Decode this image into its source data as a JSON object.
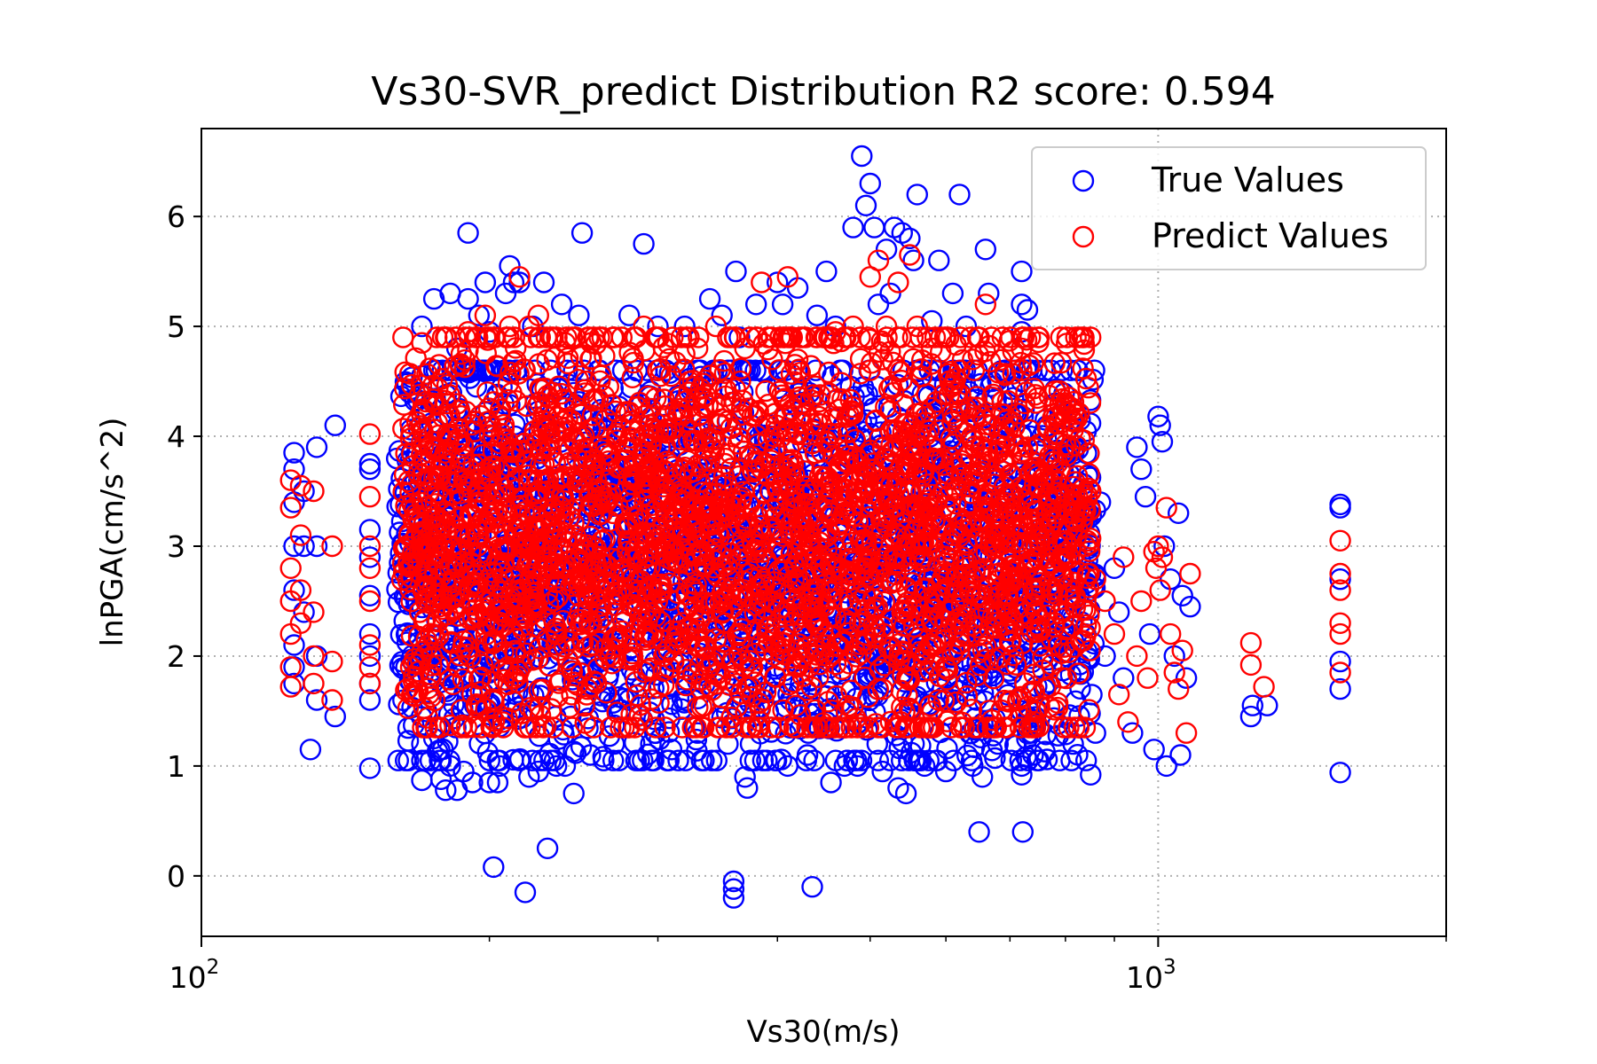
{
  "chart_data": {
    "type": "scatter",
    "title": "Vs30-SVR_predict Distribution R2 score: 0.594",
    "xlabel": "Vs30(m/s)",
    "ylabel": "lnPGA(cm/s^2)",
    "x_scale": "log",
    "xlim": [
      100,
      2000
    ],
    "ylim": [
      -0.55,
      6.8
    ],
    "x_ticks": [
      {
        "value": 100,
        "base": "10",
        "exp": "2"
      },
      {
        "value": 1000,
        "base": "10",
        "exp": "3"
      }
    ],
    "y_ticks": [
      0,
      1,
      2,
      3,
      4,
      5,
      6
    ],
    "y_tick_labels": [
      "0",
      "1",
      "2",
      "3",
      "4",
      "5",
      "6"
    ],
    "grid": true,
    "legend_position": "upper right",
    "series": [
      {
        "name": "True Values",
        "color": "#0000ff",
        "marker": "open-circle",
        "points": [
          [
            125,
            3.85
          ],
          [
            125,
            3.7
          ],
          [
            125,
            3.4
          ],
          [
            125,
            3.0
          ],
          [
            125,
            2.6
          ],
          [
            125,
            2.1
          ],
          [
            125,
            1.9
          ],
          [
            125,
            1.75
          ],
          [
            128,
            3.5
          ],
          [
            128,
            3.0
          ],
          [
            128,
            2.4
          ],
          [
            130,
            1.15
          ],
          [
            132,
            3.9
          ],
          [
            132,
            3.0
          ],
          [
            132,
            2.0
          ],
          [
            132,
            1.6
          ],
          [
            138,
            4.1
          ],
          [
            138,
            1.45
          ],
          [
            150,
            3.75
          ],
          [
            150,
            3.7
          ],
          [
            150,
            3.15
          ],
          [
            150,
            2.9
          ],
          [
            150,
            2.55
          ],
          [
            150,
            2.2
          ],
          [
            150,
            2.0
          ],
          [
            150,
            1.75
          ],
          [
            150,
            1.6
          ],
          [
            150,
            0.98
          ],
          [
            165,
            4.4
          ],
          [
            168,
            2.8
          ],
          [
            170,
            5.0
          ],
          [
            170,
            4.55
          ],
          [
            170,
            4.2
          ],
          [
            170,
            1.2
          ],
          [
            170,
            1.05
          ],
          [
            170,
            0.87
          ],
          [
            175,
            5.25
          ],
          [
            175,
            4.6
          ],
          [
            175,
            1.25
          ],
          [
            178,
            1.05
          ],
          [
            178,
            0.88
          ],
          [
            180,
            4.2
          ],
          [
            180,
            0.78
          ],
          [
            182,
            5.3
          ],
          [
            182,
            1.0
          ],
          [
            185,
            4.8
          ],
          [
            185,
            0.78
          ],
          [
            188,
            0.95
          ],
          [
            190,
            5.85
          ],
          [
            190,
            5.25
          ],
          [
            192,
            0.85
          ],
          [
            195,
            5.1
          ],
          [
            198,
            5.4
          ],
          [
            200,
            4.95
          ],
          [
            200,
            0.85
          ],
          [
            202,
            0.08
          ],
          [
            204,
            0.85
          ],
          [
            205,
            1.0
          ],
          [
            208,
            5.3
          ],
          [
            210,
            5.55
          ],
          [
            212,
            5.4
          ],
          [
            215,
            5.4
          ],
          [
            218,
            -0.15
          ],
          [
            220,
            0.9
          ],
          [
            222,
            5.0
          ],
          [
            225,
            0.95
          ],
          [
            228,
            5.4
          ],
          [
            230,
            0.25
          ],
          [
            235,
            1.0
          ],
          [
            238,
            5.2
          ],
          [
            240,
            1.0
          ],
          [
            245,
            0.75
          ],
          [
            248,
            5.1
          ],
          [
            250,
            5.85
          ],
          [
            255,
            1.1
          ],
          [
            260,
            4.6
          ],
          [
            270,
            1.2
          ],
          [
            280,
            5.1
          ],
          [
            290,
            5.75
          ],
          [
            295,
            1.2
          ],
          [
            300,
            5.0
          ],
          [
            310,
            1.15
          ],
          [
            320,
            5.0
          ],
          [
            330,
            1.3
          ],
          [
            340,
            5.25
          ],
          [
            350,
            5.1
          ],
          [
            355,
            1.2
          ],
          [
            360,
            -0.05
          ],
          [
            360,
            -0.12
          ],
          [
            360,
            -0.2
          ],
          [
            362,
            5.5
          ],
          [
            365,
            4.9
          ],
          [
            368,
            4.4
          ],
          [
            370,
            0.9
          ],
          [
            372,
            0.8
          ],
          [
            375,
            1.2
          ],
          [
            380,
            5.2
          ],
          [
            390,
            1.05
          ],
          [
            400,
            5.4
          ],
          [
            405,
            5.2
          ],
          [
            410,
            1.0
          ],
          [
            420,
            5.35
          ],
          [
            430,
            1.1
          ],
          [
            435,
            -0.1
          ],
          [
            440,
            5.1
          ],
          [
            450,
            5.5
          ],
          [
            455,
            0.85
          ],
          [
            460,
            5.0
          ],
          [
            470,
            1.0
          ],
          [
            480,
            5.9
          ],
          [
            485,
            1.0
          ],
          [
            490,
            6.55
          ],
          [
            495,
            6.1
          ],
          [
            500,
            6.3
          ],
          [
            505,
            5.9
          ],
          [
            510,
            5.2
          ],
          [
            515,
            0.95
          ],
          [
            520,
            5.7
          ],
          [
            525,
            5.3
          ],
          [
            530,
            5.9
          ],
          [
            535,
            0.8
          ],
          [
            540,
            5.85
          ],
          [
            545,
            0.75
          ],
          [
            550,
            5.8
          ],
          [
            555,
            5.6
          ],
          [
            560,
            6.2
          ],
          [
            570,
            1.0
          ],
          [
            580,
            5.05
          ],
          [
            590,
            5.6
          ],
          [
            600,
            0.95
          ],
          [
            610,
            5.3
          ],
          [
            620,
            6.2
          ],
          [
            630,
            5.0
          ],
          [
            640,
            1.0
          ],
          [
            650,
            0.4
          ],
          [
            655,
            0.9
          ],
          [
            660,
            5.7
          ],
          [
            665,
            5.3
          ],
          [
            670,
            4.5
          ],
          [
            680,
            1.2
          ],
          [
            700,
            4.2
          ],
          [
            720,
            5.5
          ],
          [
            720,
            5.2
          ],
          [
            720,
            4.95
          ],
          [
            720,
            4.5
          ],
          [
            720,
            4.0
          ],
          [
            720,
            3.5
          ],
          [
            720,
            3.0
          ],
          [
            720,
            2.5
          ],
          [
            720,
            2.0
          ],
          [
            720,
            1.5
          ],
          [
            720,
            1.0
          ],
          [
            720,
            0.92
          ],
          [
            722,
            0.4
          ],
          [
            730,
            5.15
          ],
          [
            735,
            4.0
          ],
          [
            740,
            1.1
          ],
          [
            760,
            3.5
          ],
          [
            770,
            3.3
          ],
          [
            780,
            4.3
          ],
          [
            790,
            4.2
          ],
          [
            800,
            4.0
          ],
          [
            810,
            3.0
          ],
          [
            815,
            1.2
          ],
          [
            820,
            3.2
          ],
          [
            830,
            2.7
          ],
          [
            840,
            2.2
          ],
          [
            850,
            0.92
          ],
          [
            860,
            1.3
          ],
          [
            870,
            3.4
          ],
          [
            880,
            2.0
          ],
          [
            900,
            2.8
          ],
          [
            910,
            2.4
          ],
          [
            920,
            1.8
          ],
          [
            940,
            1.3
          ],
          [
            950,
            3.9
          ],
          [
            960,
            3.7
          ],
          [
            970,
            3.45
          ],
          [
            980,
            2.2
          ],
          [
            990,
            1.15
          ],
          [
            1000,
            4.18
          ],
          [
            1005,
            4.1
          ],
          [
            1010,
            3.95
          ],
          [
            1015,
            3.0
          ],
          [
            1020,
            1.0
          ],
          [
            1030,
            2.7
          ],
          [
            1040,
            2.0
          ],
          [
            1050,
            3.3
          ],
          [
            1055,
            1.1
          ],
          [
            1060,
            2.55
          ],
          [
            1070,
            1.8
          ],
          [
            1080,
            2.45
          ],
          [
            1250,
            1.45
          ],
          [
            1255,
            1.55
          ],
          [
            1300,
            1.55
          ],
          [
            1550,
            3.38
          ],
          [
            1550,
            3.35
          ],
          [
            1550,
            2.7
          ],
          [
            1550,
            1.95
          ],
          [
            1550,
            1.7
          ],
          [
            1550,
            0.94
          ]
        ]
      },
      {
        "name": "Predict Values",
        "color": "#ff0000",
        "marker": "open-circle",
        "points": [
          [
            124,
            3.6
          ],
          [
            124,
            3.35
          ],
          [
            124,
            2.8
          ],
          [
            124,
            2.5
          ],
          [
            124,
            2.2
          ],
          [
            124,
            1.9
          ],
          [
            124,
            1.72
          ],
          [
            127,
            3.55
          ],
          [
            127,
            3.1
          ],
          [
            127,
            2.6
          ],
          [
            127,
            2.3
          ],
          [
            131,
            3.5
          ],
          [
            131,
            2.4
          ],
          [
            131,
            2.0
          ],
          [
            131,
            1.75
          ],
          [
            137,
            3.0
          ],
          [
            137,
            1.95
          ],
          [
            137,
            1.6
          ],
          [
            150,
            4.02
          ],
          [
            150,
            3.45
          ],
          [
            150,
            3.0
          ],
          [
            150,
            2.8
          ],
          [
            150,
            2.5
          ],
          [
            150,
            2.1
          ],
          [
            150,
            1.9
          ],
          [
            150,
            1.75
          ],
          [
            170,
            4.85
          ],
          [
            175,
            4.3
          ],
          [
            180,
            4.9
          ],
          [
            190,
            4.95
          ],
          [
            198,
            5.1
          ],
          [
            200,
            4.9
          ],
          [
            210,
            5.0
          ],
          [
            215,
            5.45
          ],
          [
            220,
            5.0
          ],
          [
            225,
            5.1
          ],
          [
            232,
            4.9
          ],
          [
            240,
            4.85
          ],
          [
            255,
            4.7
          ],
          [
            275,
            4.9
          ],
          [
            290,
            5.0
          ],
          [
            300,
            4.6
          ],
          [
            320,
            4.75
          ],
          [
            330,
            4.8
          ],
          [
            345,
            5.0
          ],
          [
            355,
            4.9
          ],
          [
            370,
            4.8
          ],
          [
            385,
            5.4
          ],
          [
            395,
            4.7
          ],
          [
            410,
            5.45
          ],
          [
            420,
            4.7
          ],
          [
            440,
            4.9
          ],
          [
            460,
            4.95
          ],
          [
            480,
            5.0
          ],
          [
            500,
            5.45
          ],
          [
            510,
            5.6
          ],
          [
            520,
            5.0
          ],
          [
            535,
            5.4
          ],
          [
            550,
            5.65
          ],
          [
            560,
            5.0
          ],
          [
            580,
            4.8
          ],
          [
            600,
            4.9
          ],
          [
            620,
            4.6
          ],
          [
            640,
            4.7
          ],
          [
            660,
            5.2
          ],
          [
            670,
            4.1
          ],
          [
            690,
            4.2
          ],
          [
            700,
            3.3
          ],
          [
            720,
            4.8
          ],
          [
            720,
            4.6
          ],
          [
            725,
            4.3
          ],
          [
            730,
            3.9
          ],
          [
            735,
            3.4
          ],
          [
            740,
            3.0
          ],
          [
            760,
            3.1
          ],
          [
            780,
            2.8
          ],
          [
            800,
            3.05
          ],
          [
            820,
            4.2
          ],
          [
            840,
            3.0
          ],
          [
            850,
            3.5
          ],
          [
            860,
            2.7
          ],
          [
            880,
            2.5
          ],
          [
            900,
            2.2
          ],
          [
            910,
            1.65
          ],
          [
            920,
            2.9
          ],
          [
            930,
            1.4
          ],
          [
            950,
            2.0
          ],
          [
            960,
            2.5
          ],
          [
            975,
            1.8
          ],
          [
            990,
            2.95
          ],
          [
            995,
            2.8
          ],
          [
            1000,
            3.0
          ],
          [
            1005,
            2.6
          ],
          [
            1010,
            2.9
          ],
          [
            1020,
            3.35
          ],
          [
            1030,
            2.2
          ],
          [
            1040,
            1.85
          ],
          [
            1050,
            1.7
          ],
          [
            1060,
            2.05
          ],
          [
            1070,
            1.3
          ],
          [
            1080,
            2.75
          ],
          [
            1250,
            2.12
          ],
          [
            1250,
            1.92
          ],
          [
            1290,
            1.72
          ],
          [
            1550,
            3.05
          ],
          [
            1550,
            2.75
          ],
          [
            1550,
            2.6
          ],
          [
            1550,
            2.3
          ],
          [
            1550,
            2.2
          ],
          [
            1550,
            1.85
          ]
        ]
      }
    ],
    "dense_regions": [
      {
        "series": "True Values",
        "x_range": [
          160,
          860
        ],
        "y_range": [
          1.05,
          4.6
        ],
        "count": 2400
      },
      {
        "series": "Predict Values",
        "x_range": [
          162,
          850
        ],
        "y_range": [
          1.35,
          4.9
        ],
        "count": 3000
      }
    ]
  }
}
